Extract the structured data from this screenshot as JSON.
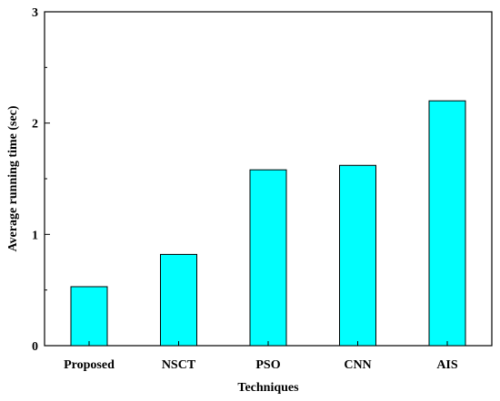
{
  "chart_data": {
    "type": "bar",
    "title": "",
    "xlabel": "Techniques",
    "ylabel": "Average running time (sec)",
    "categories": [
      "Proposed",
      "NSCT",
      "PSO",
      "CNN",
      "AIS"
    ],
    "values": [
      0.53,
      0.82,
      1.58,
      1.62,
      2.2
    ],
    "ylim": [
      0,
      3
    ],
    "yticks": [
      "0",
      "1",
      "2",
      "3"
    ],
    "grid": false,
    "bar_color": "#00FFFF"
  }
}
